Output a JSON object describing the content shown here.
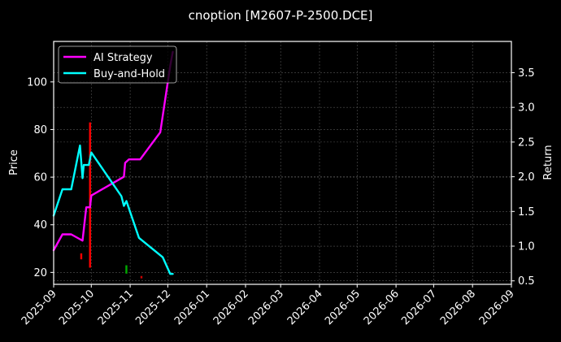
{
  "chart_data": {
    "type": "line",
    "title": "cnoption [M2607-P-2500.DCE]",
    "xlabel": "",
    "ylabel": "Price",
    "ylabel_right": "Return",
    "xlim": [
      "2025-09-01",
      "2026-09-01"
    ],
    "ylim": [
      15,
      117
    ],
    "ylim_right": [
      0.45,
      3.95
    ],
    "grid": true,
    "legend_position": "upper left",
    "x_ticks": [
      "2025-09",
      "2025-10",
      "2025-11",
      "2025-12",
      "2026-01",
      "2026-02",
      "2026-03",
      "2026-04",
      "2026-05",
      "2026-06",
      "2026-07",
      "2026-08",
      "2026-09"
    ],
    "y_ticks_left": [
      20,
      40,
      60,
      80,
      100
    ],
    "y_ticks_right": [
      0.5,
      1.0,
      1.5,
      2.0,
      2.5,
      3.0,
      3.5
    ],
    "series": [
      {
        "name": "AI Strategy",
        "axis": "right",
        "color": "#ff00ff",
        "points": [
          [
            "2025-09-01",
            0.94
          ],
          [
            "2025-09-08",
            1.17
          ],
          [
            "2025-09-15",
            1.17
          ],
          [
            "2025-09-22",
            1.1
          ],
          [
            "2025-09-24",
            1.08
          ],
          [
            "2025-09-27",
            1.56
          ],
          [
            "2025-09-30",
            1.56
          ],
          [
            "2025-10-01",
            1.73
          ],
          [
            "2025-10-27",
            2.0
          ],
          [
            "2025-10-28",
            2.2
          ],
          [
            "2025-10-31",
            2.25
          ],
          [
            "2025-11-09",
            2.25
          ],
          [
            "2025-11-25",
            2.64
          ],
          [
            "2025-12-03",
            3.6
          ],
          [
            "2025-12-05",
            3.8
          ]
        ]
      },
      {
        "name": "Buy-and-Hold",
        "axis": "right",
        "color": "#00ffff",
        "points": [
          [
            "2025-09-01",
            1.44
          ],
          [
            "2025-09-08",
            1.82
          ],
          [
            "2025-09-15",
            1.82
          ],
          [
            "2025-09-22",
            2.45
          ],
          [
            "2025-09-24",
            1.98
          ],
          [
            "2025-09-25",
            2.17
          ],
          [
            "2025-09-29",
            2.17
          ],
          [
            "2025-10-01",
            2.35
          ],
          [
            "2025-10-25",
            1.72
          ],
          [
            "2025-10-27",
            1.58
          ],
          [
            "2025-10-29",
            1.65
          ],
          [
            "2025-11-08",
            1.12
          ],
          [
            "2025-11-27",
            0.84
          ],
          [
            "2025-12-03",
            0.6
          ],
          [
            "2025-12-05",
            0.6
          ]
        ]
      }
    ],
    "candles": [
      {
        "date": "2025-09-23",
        "low": 25.5,
        "high": 28,
        "color": "#ff0000"
      },
      {
        "date": "2025-09-30",
        "low": 22,
        "high": 83,
        "color": "#ff0000"
      },
      {
        "date": "2025-10-29",
        "low": 19.5,
        "high": 23,
        "color": "#00aa00"
      },
      {
        "date": "2025-11-10",
        "low": 17.5,
        "high": 18.5,
        "color": "#cc0000"
      }
    ]
  },
  "legend": {
    "items": [
      {
        "label": "AI Strategy",
        "color": "#ff00ff"
      },
      {
        "label": "Buy-and-Hold",
        "color": "#00ffff"
      }
    ]
  }
}
